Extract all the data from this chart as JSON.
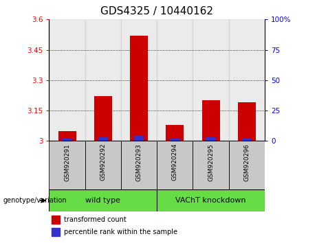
{
  "title": "GDS4325 / 10440162",
  "categories": [
    "GSM920291",
    "GSM920292",
    "GSM920293",
    "GSM920294",
    "GSM920295",
    "GSM920296"
  ],
  "red_values": [
    3.05,
    3.22,
    3.52,
    3.08,
    3.2,
    3.19
  ],
  "blue_percentiles": [
    2,
    3,
    4,
    2,
    3,
    2
  ],
  "ylim_left": [
    3.0,
    3.6
  ],
  "ylim_right": [
    0,
    100
  ],
  "yticks_left": [
    3.0,
    3.15,
    3.3,
    3.45,
    3.6
  ],
  "ytick_labels_left": [
    "3",
    "3.15",
    "3.3",
    "3.45",
    "3.6"
  ],
  "yticks_right": [
    0,
    25,
    50,
    75,
    100
  ],
  "ytick_labels_right": [
    "0",
    "25",
    "50",
    "75",
    "100%"
  ],
  "grid_values": [
    3.15,
    3.3,
    3.45
  ],
  "bar_color": "#cc0000",
  "blue_color": "#3333cc",
  "bar_width": 0.5,
  "group1_label": "wild type",
  "group2_label": "VAChT knockdown",
  "group1_indices": [
    0,
    1,
    2
  ],
  "group2_indices": [
    3,
    4,
    5
  ],
  "group_green_color": "#66dd44",
  "col_bg_color": "#c8c8c8",
  "genotype_label": "genotype/variation",
  "legend_red": "transformed count",
  "legend_blue": "percentile rank within the sample",
  "title_fontsize": 11,
  "tick_fontsize": 7.5
}
